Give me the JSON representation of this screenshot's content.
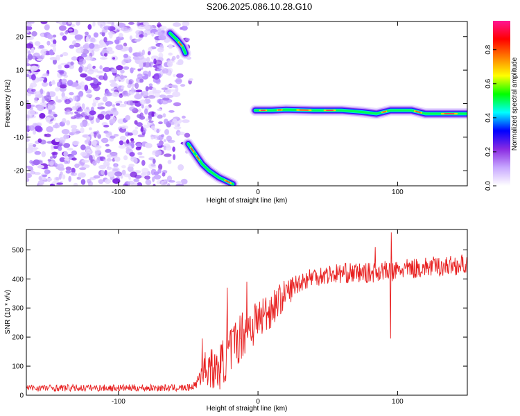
{
  "title": "S206.2025.086.10.28.G10",
  "chart_data": [
    {
      "type": "heatmap",
      "xlabel": "Height of straight line (km)",
      "ylabel": "Frequency (Hz)",
      "xlim": [
        -166,
        150
      ],
      "ylim": [
        -24.5,
        24.5
      ],
      "x_ticks": [
        -100,
        0,
        100
      ],
      "y_ticks": [
        20,
        10,
        0,
        -10,
        -20
      ],
      "colorbar": {
        "label": "Normalized spectral amplitude",
        "range": [
          0,
          0.97
        ],
        "ticks": [
          "0.0",
          "0.2",
          "0.4",
          "0.6",
          "0.8"
        ],
        "tick_values": [
          0.0,
          0.2,
          0.4,
          0.6,
          0.8
        ],
        "colors": [
          "#ffffff",
          "#c8a8ff",
          "#8a2be2",
          "#0000ff",
          "#00ffff",
          "#00ff00",
          "#ffff00",
          "#ff8000",
          "#ff0000",
          "#ff1493"
        ]
      },
      "noise_region": {
        "x": [
          -166,
          -48
        ],
        "y": [
          -24.5,
          24.5
        ]
      },
      "ridges": [
        {
          "name": "",
          "points": [
            [
              -63,
              21
            ],
            [
              -58,
              19
            ],
            [
              -54,
              17
            ],
            [
              -52,
              15
            ]
          ]
        },
        {
          "name": "",
          "points": [
            [
              -50,
              -12
            ],
            [
              -45,
              -15
            ],
            [
              -40,
              -18
            ],
            [
              -35,
              -20
            ],
            [
              -28,
              -22
            ],
            [
              -18,
              -24
            ]
          ]
        },
        {
          "name": "",
          "points": [
            [
              -2,
              -2
            ],
            [
              10,
              -2
            ],
            [
              20,
              -1.8
            ],
            [
              40,
              -2
            ],
            [
              60,
              -2
            ],
            [
              75,
              -2.5
            ],
            [
              85,
              -3
            ],
            [
              95,
              -2
            ],
            [
              110,
              -2
            ],
            [
              120,
              -3
            ],
            [
              150,
              -3
            ]
          ]
        }
      ]
    },
    {
      "type": "line",
      "xlabel": "Height of straight line (km)",
      "ylabel": "SNR (10 * v/v)",
      "xlim": [
        -166,
        150
      ],
      "ylim": [
        0,
        570
      ],
      "x_ticks": [
        -100,
        0,
        100
      ],
      "y_ticks": [
        0,
        100,
        200,
        300,
        400,
        500
      ],
      "color": "#e82020",
      "anchors": {
        "x": [
          -166,
          -100,
          -50,
          -45,
          -40,
          -35,
          -30,
          -20,
          -10,
          0,
          10,
          20,
          30,
          40,
          60,
          80,
          90,
          95,
          100,
          120,
          150
        ],
        "y": [
          25,
          25,
          25,
          35,
          80,
          100,
          80,
          150,
          220,
          260,
          300,
          350,
          390,
          410,
          420,
          420,
          430,
          420,
          430,
          440,
          450
        ]
      },
      "noise": {
        "x": [
          -166,
          -45,
          -40,
          -20,
          0,
          30,
          150
        ],
        "amp": [
          12,
          12,
          60,
          90,
          80,
          35,
          35
        ]
      },
      "spikes": [
        {
          "x": 95,
          "y": 195
        },
        {
          "x": 95.5,
          "y": 560
        },
        {
          "x": 84,
          "y": 510
        },
        {
          "x": -8,
          "y": 390
        },
        {
          "x": -22,
          "y": 370
        },
        {
          "x": -40,
          "y": 195
        }
      ]
    }
  ]
}
